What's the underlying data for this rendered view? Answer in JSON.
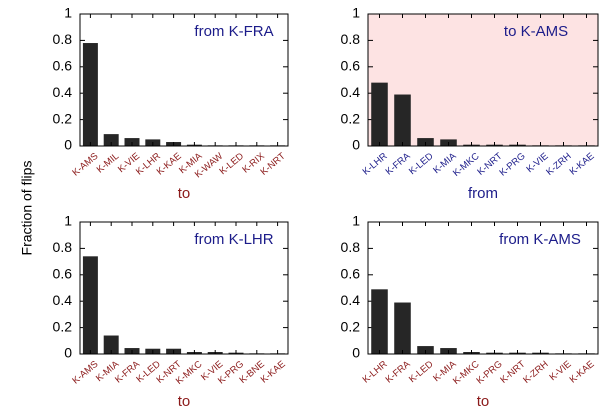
{
  "ylabel": "Fraction of flips",
  "chart_data": [
    {
      "type": "bar",
      "annotation": "from K-FRA",
      "xlabel": "to",
      "categories": [
        "K-AMS",
        "K-MIL",
        "K-VIE",
        "K-LHR",
        "K-KAE",
        "K-MIA",
        "K-WAW",
        "K-LED",
        "K-RIX",
        "K-NRT"
      ],
      "values": [
        0.78,
        0.09,
        0.06,
        0.05,
        0.03,
        0.01,
        0.005,
        0.005,
        0.005,
        0.005
      ],
      "ylim": [
        0,
        1
      ],
      "yticks": [
        "0",
        "0.2",
        "0.4",
        "0.6",
        "0.8",
        "1"
      ],
      "highlight": false
    },
    {
      "type": "bar",
      "annotation": "to K-AMS",
      "xlabel": "from",
      "categories": [
        "K-LHR",
        "K-FRA",
        "K-LED",
        "K-MIA",
        "K-MKC",
        "K-NRT",
        "K-PRG",
        "K-VIE",
        "K-ZRH",
        "K-KAE"
      ],
      "values": [
        0.48,
        0.39,
        0.06,
        0.05,
        0.01,
        0.01,
        0.01,
        0.005,
        0.005,
        0.005
      ],
      "ylim": [
        0,
        1
      ],
      "yticks": [
        "0",
        "0.2",
        "0.4",
        "0.6",
        "0.8",
        "1"
      ],
      "highlight": true
    },
    {
      "type": "bar",
      "annotation": "from K-LHR",
      "xlabel": "to",
      "categories": [
        "K-AMS",
        "K-MIA",
        "K-FRA",
        "K-LED",
        "K-NRT",
        "K-MKC",
        "K-VIE",
        "K-PRG",
        "K-BNE",
        "K-KAE"
      ],
      "values": [
        0.74,
        0.14,
        0.045,
        0.04,
        0.04,
        0.015,
        0.015,
        0.01,
        0.005,
        0.005
      ],
      "ylim": [
        0,
        1
      ],
      "yticks": [
        "0",
        "0.2",
        "0.4",
        "0.6",
        "0.8",
        "1"
      ],
      "highlight": false
    },
    {
      "type": "bar",
      "annotation": "from K-AMS",
      "xlabel": "to",
      "categories": [
        "K-LHR",
        "K-FRA",
        "K-LED",
        "K-MIA",
        "K-MKC",
        "K-PRG",
        "K-NRT",
        "K-ZRH",
        "K-VIE",
        "K-KAE"
      ],
      "values": [
        0.49,
        0.39,
        0.06,
        0.045,
        0.015,
        0.01,
        0.01,
        0.01,
        0.005,
        0.005
      ],
      "ylim": [
        0,
        1
      ],
      "yticks": [
        "0",
        "0.2",
        "0.4",
        "0.6",
        "0.8",
        "1"
      ],
      "highlight": false
    }
  ],
  "colors": {
    "bar": "#262626",
    "annotation": "#1c1c8a",
    "to_axis_text": "#8b1a1a",
    "from_axis_text": "#1c1c8a",
    "highlight_bg": "#fde3e3"
  }
}
